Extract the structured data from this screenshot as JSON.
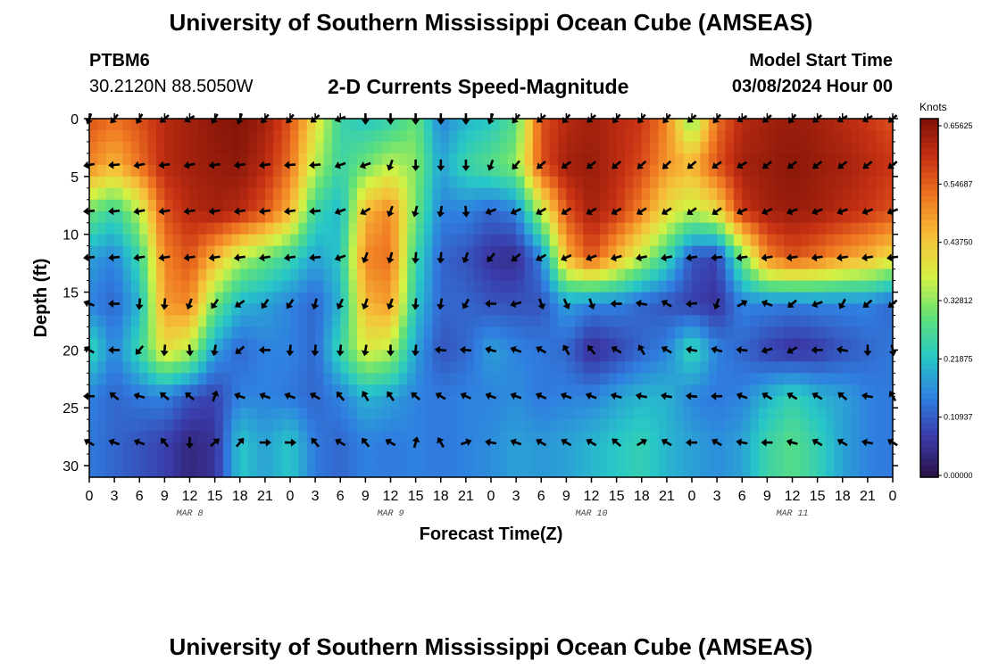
{
  "page": {
    "title": "University of Southern Mississippi Ocean Cube (AMSEAS)",
    "station_id": "PTBM6",
    "coordinates": "30.2120N  88.5050W",
    "subtitle": "2-D Currents Speed-Magnitude",
    "model_start_label": "Model Start Time",
    "model_start_value": "03/08/2024 Hour 00",
    "footer_title": "University of Southern Mississippi Ocean Cube (AMSEAS)"
  },
  "colors": {
    "colormap": [
      "#2b1245",
      "#3a3aa8",
      "#2f7fe0",
      "#27c7c7",
      "#5ee07a",
      "#d4f244",
      "#f6c23a",
      "#f07a22",
      "#c83214",
      "#7c1107"
    ],
    "arrow": "#000000"
  },
  "chart_data": {
    "type": "heatmap",
    "title": "2-D Currents Speed-Magnitude",
    "xlabel": "Forecast Time(Z)",
    "ylabel": "Depth (ft)",
    "x_ticks": [
      "0",
      "3",
      "6",
      "9",
      "12",
      "15",
      "18",
      "21",
      "0",
      "3",
      "6",
      "9",
      "12",
      "15",
      "18",
      "21",
      "0",
      "3",
      "6",
      "9",
      "12",
      "15",
      "18",
      "21",
      "0",
      "3",
      "6",
      "9",
      "12",
      "15",
      "18",
      "21",
      "0"
    ],
    "date_labels": [
      {
        "label": "MAR 8",
        "hour": 12
      },
      {
        "label": "MAR 9",
        "hour": 36
      },
      {
        "label": "MAR 10",
        "hour": 60
      },
      {
        "label": "MAR 11",
        "hour": 84
      }
    ],
    "x_range_hours": [
      0,
      96
    ],
    "y_ticks": [
      0,
      5,
      10,
      15,
      20,
      25,
      30
    ],
    "y_range_ft": [
      0,
      31
    ],
    "colorbar": {
      "label": "Knots",
      "ticks": [
        "0.65625",
        "0.54687",
        "0.43750",
        "0.32812",
        "0.21875",
        "0.10937",
        "0.00000"
      ],
      "range": [
        0,
        0.65625
      ]
    },
    "depths_ft": [
      0,
      4,
      8,
      12,
      16,
      20,
      24,
      28
    ],
    "hours": [
      0,
      3,
      6,
      9,
      12,
      15,
      18,
      21,
      24,
      27,
      30,
      33,
      36,
      39,
      42,
      45,
      48,
      51,
      54,
      57,
      60,
      63,
      66,
      69,
      72,
      75,
      78,
      81,
      84,
      87,
      90,
      93,
      96
    ],
    "speed_knots": [
      [
        0.55,
        0.52,
        0.55,
        0.6,
        0.62,
        0.64,
        0.65,
        0.62,
        0.55,
        0.4,
        0.25,
        0.22,
        0.24,
        0.3,
        0.15,
        0.2,
        0.22,
        0.28,
        0.55,
        0.6,
        0.62,
        0.6,
        0.58,
        0.5,
        0.3,
        0.52,
        0.6,
        0.62,
        0.63,
        0.62,
        0.6,
        0.58,
        0.55
      ],
      [
        0.5,
        0.45,
        0.52,
        0.6,
        0.62,
        0.63,
        0.64,
        0.6,
        0.52,
        0.35,
        0.25,
        0.3,
        0.35,
        0.32,
        0.18,
        0.25,
        0.28,
        0.32,
        0.55,
        0.62,
        0.63,
        0.6,
        0.56,
        0.48,
        0.45,
        0.55,
        0.62,
        0.63,
        0.64,
        0.63,
        0.62,
        0.6,
        0.58
      ],
      [
        0.3,
        0.25,
        0.35,
        0.55,
        0.6,
        0.62,
        0.6,
        0.55,
        0.45,
        0.25,
        0.2,
        0.45,
        0.5,
        0.3,
        0.15,
        0.15,
        0.12,
        0.15,
        0.35,
        0.55,
        0.62,
        0.58,
        0.5,
        0.4,
        0.35,
        0.4,
        0.58,
        0.62,
        0.63,
        0.62,
        0.6,
        0.58,
        0.55
      ],
      [
        0.18,
        0.15,
        0.25,
        0.5,
        0.55,
        0.45,
        0.35,
        0.3,
        0.25,
        0.18,
        0.22,
        0.5,
        0.52,
        0.25,
        0.12,
        0.1,
        0.06,
        0.05,
        0.15,
        0.45,
        0.55,
        0.45,
        0.35,
        0.25,
        0.1,
        0.08,
        0.3,
        0.5,
        0.55,
        0.52,
        0.48,
        0.45,
        0.4
      ],
      [
        0.15,
        0.12,
        0.2,
        0.48,
        0.5,
        0.3,
        0.2,
        0.18,
        0.15,
        0.12,
        0.2,
        0.45,
        0.48,
        0.22,
        0.12,
        0.12,
        0.1,
        0.1,
        0.1,
        0.18,
        0.15,
        0.15,
        0.12,
        0.1,
        0.08,
        0.06,
        0.15,
        0.15,
        0.14,
        0.15,
        0.15,
        0.15,
        0.12
      ],
      [
        0.25,
        0.15,
        0.25,
        0.4,
        0.35,
        0.18,
        0.12,
        0.15,
        0.15,
        0.12,
        0.25,
        0.38,
        0.35,
        0.18,
        0.1,
        0.12,
        0.18,
        0.15,
        0.14,
        0.12,
        0.05,
        0.08,
        0.12,
        0.15,
        0.25,
        0.15,
        0.12,
        0.08,
        0.06,
        0.07,
        0.1,
        0.12,
        0.14
      ],
      [
        0.15,
        0.12,
        0.14,
        0.15,
        0.1,
        0.08,
        0.15,
        0.15,
        0.14,
        0.12,
        0.15,
        0.2,
        0.18,
        0.15,
        0.14,
        0.15,
        0.15,
        0.16,
        0.14,
        0.15,
        0.15,
        0.18,
        0.2,
        0.2,
        0.15,
        0.14,
        0.15,
        0.2,
        0.24,
        0.2,
        0.18,
        0.15,
        0.14
      ],
      [
        0.14,
        0.12,
        0.1,
        0.08,
        0.04,
        0.06,
        0.22,
        0.18,
        0.22,
        0.14,
        0.12,
        0.15,
        0.14,
        0.15,
        0.14,
        0.15,
        0.16,
        0.18,
        0.17,
        0.18,
        0.2,
        0.22,
        0.24,
        0.2,
        0.18,
        0.16,
        0.18,
        0.25,
        0.28,
        0.24,
        0.18,
        0.15,
        0.14
      ]
    ],
    "direction_deg": [
      [
        200,
        220,
        210,
        230,
        240,
        210,
        200,
        220,
        220,
        230,
        250,
        180,
        180,
        180,
        180,
        180,
        200,
        220,
        230,
        220,
        230,
        220,
        220,
        220,
        230,
        220,
        240,
        230,
        220,
        230,
        240,
        240,
        230
      ],
      [
        260,
        265,
        260,
        262,
        258,
        262,
        262,
        262,
        265,
        265,
        250,
        250,
        200,
        180,
        180,
        180,
        200,
        220,
        230,
        235,
        232,
        230,
        228,
        226,
        230,
        235,
        240,
        232,
        232,
        232,
        232,
        232,
        232
      ],
      [
        265,
        265,
        260,
        262,
        262,
        262,
        262,
        262,
        262,
        265,
        250,
        240,
        200,
        195,
        190,
        175,
        250,
        245,
        240,
        238,
        240,
        240,
        238,
        238,
        235,
        235,
        245,
        245,
        248,
        250,
        250,
        250,
        250
      ],
      [
        265,
        265,
        262,
        262,
        262,
        262,
        262,
        262,
        262,
        265,
        250,
        200,
        195,
        185,
        185,
        200,
        220,
        230,
        240,
        245,
        250,
        255,
        258,
        260,
        262,
        265,
        262,
        262,
        262,
        262,
        262,
        262,
        262
      ],
      [
        290,
        270,
        185,
        185,
        200,
        215,
        235,
        215,
        215,
        195,
        205,
        200,
        200,
        185,
        190,
        210,
        270,
        255,
        160,
        155,
        160,
        270,
        280,
        300,
        265,
        200,
        60,
        290,
        230,
        250,
        210,
        230,
        230
      ],
      [
        300,
        270,
        220,
        185,
        175,
        190,
        230,
        270,
        185,
        185,
        185,
        190,
        180,
        185,
        275,
        275,
        285,
        290,
        300,
        330,
        320,
        300,
        330,
        300,
        280,
        285,
        275,
        255,
        240,
        270,
        280,
        180,
        170
      ],
      [
        270,
        310,
        285,
        310,
        310,
        20,
        290,
        290,
        290,
        300,
        320,
        330,
        325,
        310,
        300,
        295,
        290,
        290,
        295,
        290,
        290,
        285,
        280,
        280,
        275,
        270,
        290,
        300,
        300,
        300,
        310,
        280,
        330
      ],
      [
        300,
        290,
        290,
        320,
        180,
        50,
        40,
        90,
        90,
        320,
        300,
        320,
        300,
        15,
        330,
        70,
        280,
        290,
        300,
        300,
        300,
        310,
        60,
        300,
        270,
        300,
        280,
        270,
        285,
        300,
        300,
        280,
        300
      ]
    ]
  }
}
